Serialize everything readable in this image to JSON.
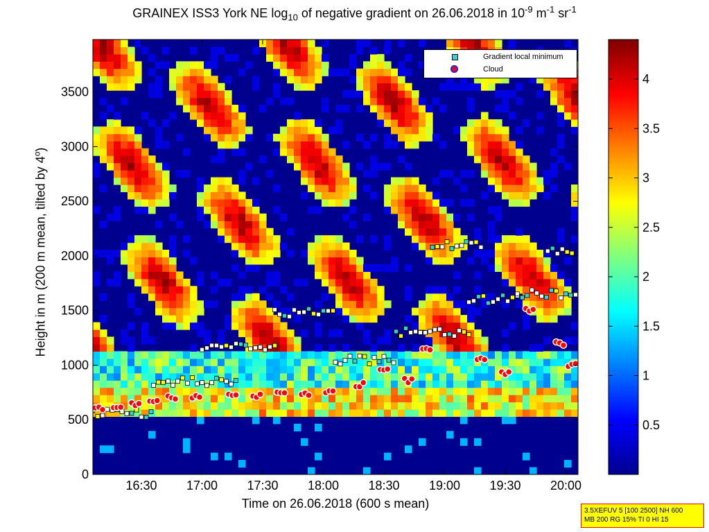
{
  "title_parts": {
    "pre": "GRAINEX ISS3 York NE log",
    "sub": "10",
    "mid": " of negative gradient on 26.06.2018 in 10",
    "sup1": "-9",
    "mid2": " m",
    "sup2": "-1",
    "mid3": " sr",
    "sup3": "-1"
  },
  "chart_data": {
    "type": "heatmap",
    "xlabel": "Time on 26.06.2018 (600 s mean)",
    "ylabel_pre": "Height in m (200 m mean, tilted by 4",
    "ylabel_sup": "o",
    "ylabel_post": ")",
    "x_ticks": [
      "16:30",
      "17:00",
      "17:30",
      "18:00",
      "18:30",
      "19:00",
      "19:30",
      "20:00"
    ],
    "x_tick_hours": [
      16.5,
      17.0,
      17.5,
      18.0,
      18.5,
      19.0,
      19.5,
      20.0
    ],
    "xlim_hours": [
      16.1,
      20.1
    ],
    "y_ticks": [
      0,
      500,
      1000,
      1500,
      2000,
      2500,
      3000,
      3500
    ],
    "ylim": [
      0,
      3980
    ],
    "colorbar": {
      "ticks": [
        0.5,
        1,
        1.5,
        2,
        2.5,
        3,
        3.5,
        4
      ],
      "range": [
        0,
        4.4
      ],
      "colormap": "jet"
    },
    "legend": [
      {
        "label": "Gradient local minimum",
        "marker": "square",
        "color": "#36d1d6"
      },
      {
        "label": "Cloud",
        "marker": "circle",
        "color": "#ff0000",
        "edge": "#2222ff"
      }
    ],
    "legend_placement": "top-right",
    "cloud_base_samples": [
      {
        "t": 16.15,
        "h": 600
      },
      {
        "t": 16.3,
        "h": 630
      },
      {
        "t": 16.45,
        "h": 650
      },
      {
        "t": 16.6,
        "h": 670
      },
      {
        "t": 16.75,
        "h": 700
      },
      {
        "t": 16.95,
        "h": 710
      },
      {
        "t": 17.25,
        "h": 720
      },
      {
        "t": 17.45,
        "h": 720
      },
      {
        "t": 17.65,
        "h": 740
      },
      {
        "t": 17.85,
        "h": 740
      },
      {
        "t": 18.05,
        "h": 760
      },
      {
        "t": 18.3,
        "h": 820
      },
      {
        "t": 18.5,
        "h": 960
      },
      {
        "t": 18.7,
        "h": 860
      },
      {
        "t": 18.85,
        "h": 1150
      },
      {
        "t": 19.3,
        "h": 1050
      },
      {
        "t": 19.5,
        "h": 920
      },
      {
        "t": 19.7,
        "h": 1500
      },
      {
        "t": 19.95,
        "h": 1200
      },
      {
        "t": 20.05,
        "h": 1000
      }
    ],
    "gradient_min_layers": [
      {
        "t0": 16.1,
        "t1": 16.6,
        "h": 560
      },
      {
        "t0": 16.6,
        "t1": 17.3,
        "h": 850
      },
      {
        "t0": 17.0,
        "t1": 17.6,
        "h": 1180
      },
      {
        "t0": 17.6,
        "t1": 18.1,
        "h": 1480
      },
      {
        "t0": 18.1,
        "t1": 18.6,
        "h": 1050
      },
      {
        "t0": 18.6,
        "t1": 19.2,
        "h": 1300
      },
      {
        "t0": 19.2,
        "t1": 19.6,
        "h": 1600
      },
      {
        "t0": 19.6,
        "t1": 20.1,
        "h": 1650
      },
      {
        "t0": 18.9,
        "t1": 19.3,
        "h": 2100
      },
      {
        "t0": 19.85,
        "t1": 20.05,
        "h": 2030
      }
    ]
  },
  "note": {
    "line1": "3.5XEFUV 5 [100 2500] NH 600",
    "line2": "MB 200 RG 15% TI 0 HI 15"
  }
}
